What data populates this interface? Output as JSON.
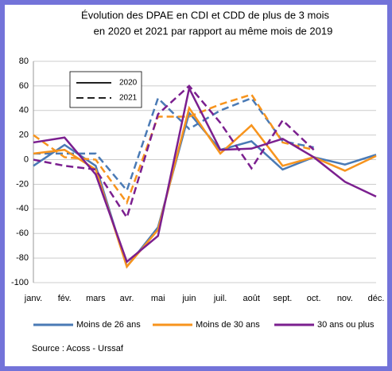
{
  "chart_data": {
    "type": "line",
    "title": [
      "Évolution des DPAE en CDI et CDD de plus de 3 mois",
      "en 2020 et 2021 par rapport au même mois de 2019"
    ],
    "categories": [
      "janv.",
      "fév.",
      "mars",
      "avr.",
      "mai",
      "juin",
      "juil.",
      "août",
      "sept.",
      "oct.",
      "nov.",
      "déc."
    ],
    "line_styles": [
      {
        "name": "2020",
        "dash": "solid"
      },
      {
        "name": "2021",
        "dash": "dashed"
      }
    ],
    "series": [
      {
        "name": "Moins de 26 ans",
        "color": "#4a7ab5",
        "values": [
          [
            -5,
            12,
            -5,
            -87,
            -55,
            38,
            8,
            15,
            -8,
            2,
            -4,
            4
          ],
          [
            5,
            5,
            5,
            -25,
            50,
            25,
            40,
            50,
            15,
            10,
            null,
            null
          ]
        ]
      },
      {
        "name": "Moins de 30 ans",
        "color": "#f7941d",
        "values": [
          [
            5,
            8,
            -8,
            -87,
            -57,
            42,
            5,
            28,
            -5,
            2,
            -9,
            3
          ],
          [
            20,
            2,
            0,
            -35,
            35,
            35,
            45,
            53,
            14,
            8,
            null,
            null
          ]
        ]
      },
      {
        "name": "30 ans ou plus",
        "color": "#7b1f8f",
        "values": [
          [
            14,
            18,
            -12,
            -83,
            -62,
            58,
            8,
            9,
            17,
            2,
            -18,
            -30
          ],
          [
            0,
            -5,
            -8,
            -47,
            37,
            60,
            30,
            -7,
            32,
            8,
            null,
            null
          ]
        ]
      }
    ],
    "ylim": [
      -100,
      80
    ],
    "yticks": [
      -100,
      -80,
      -60,
      -40,
      -20,
      0,
      20,
      40,
      60,
      80
    ],
    "source": "Source : Acoss - Urssaf"
  }
}
